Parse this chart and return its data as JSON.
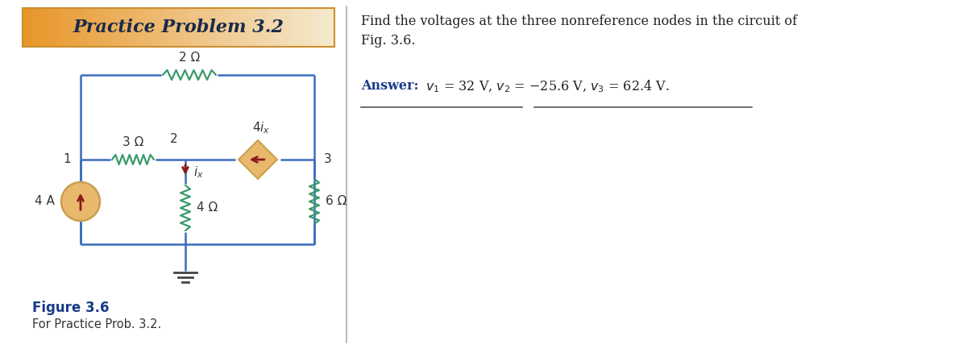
{
  "title": "Practice Problem 3.2",
  "problem_text_line1": "Find the voltages at the three nonreference nodes in the circuit of",
  "problem_text_line2": "Fig. 3.6.",
  "answer_label": "Answer:",
  "answer_text": " $v_1$ = 32 V, $v_2$ = −25.6 V, $v_3$ = 62.4 V.",
  "figure_label": "Figure 3.6",
  "figure_caption": "For Practice Prob. 3.2.",
  "circuit_line_color": "#3a6bbf",
  "resistor_color": "#3a9a6a",
  "dependent_source_fill": "#e8b86d",
  "dependent_source_edge": "#c8a050",
  "current_source_fill": "#e8b86d",
  "current_source_edge": "#c8a050",
  "dep_arrow_color": "#8b1a1a",
  "ix_arrow_color": "#8b1a1a",
  "text_color": "#333333",
  "answer_color": "#1a3a8a",
  "node1_label": "1",
  "node2_label": "2",
  "node3_label": "3",
  "r1_label": "2 Ω",
  "r2_label": "3 Ω",
  "r3_label": "4 Ω",
  "r4_label": "6 Ω",
  "cs_label": "4 A",
  "dep_label": "4i",
  "ix_label": "i",
  "background_color": "#ffffff",
  "title_color": "#1a2a4a",
  "title_grad_left": "#e8962a",
  "title_grad_right": "#f5ead0",
  "title_border_color": "#cc9030",
  "divider_color": "#aaaaaa",
  "underline_color": "#555555",
  "figure_label_color": "#1a3a8a",
  "ground_color": "#444444"
}
